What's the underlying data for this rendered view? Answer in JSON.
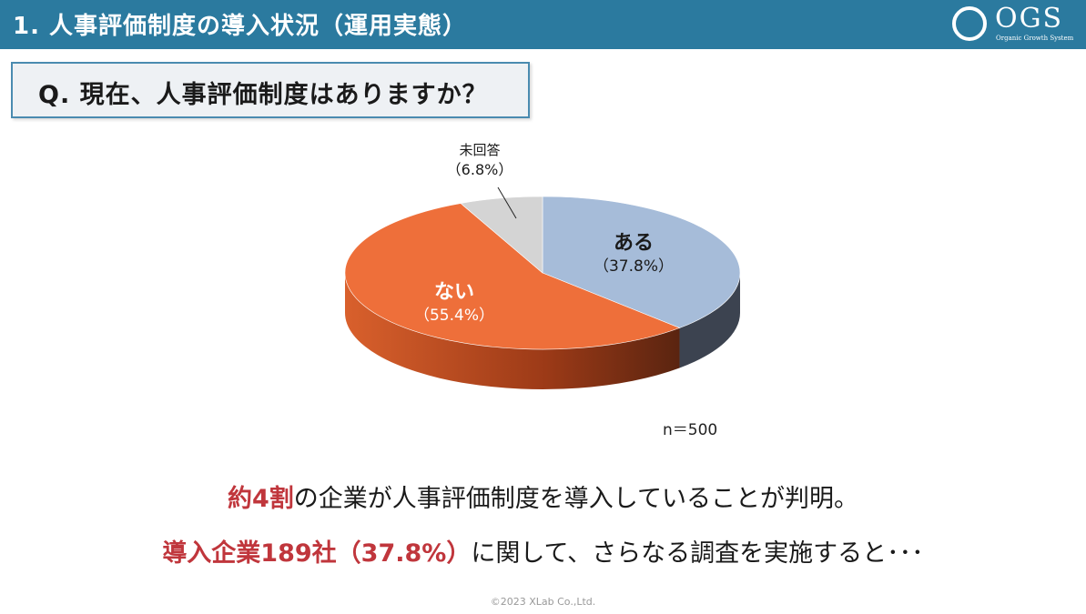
{
  "header": {
    "title": "1. 人事評価制度の導入状況（運用実態）"
  },
  "logo": {
    "text": "OGS",
    "subtitle": "Organic Growth System"
  },
  "question": {
    "text": "Q. 現在、人事評価制度はありますか？"
  },
  "chart_data": {
    "type": "pie",
    "slices": [
      {
        "label": "ある",
        "value": 37.8,
        "display": "（37.8%）",
        "color": "#a6bcd9",
        "side_color": "#3c4350"
      },
      {
        "label": "ない",
        "value": 55.4,
        "display": "（55.4%）",
        "color": "#ee6f3a",
        "side_color": "#a8401c"
      },
      {
        "label": "未回答",
        "value": 6.8,
        "display": "（6.8%）",
        "color": "#d4d4d4",
        "side_color": "#8a8a8a"
      }
    ],
    "sample_size": "n＝500"
  },
  "summary": {
    "line1_highlight": "約4割",
    "line1_rest": "の企業が人事評価制度を導入していることが判明。",
    "line2_highlight": "導入企業189社（37.8%）",
    "line2_rest": "に関して、さらなる調査を実施すると･･･"
  },
  "footer": {
    "copyright": "©2023 XLab Co.,Ltd."
  }
}
